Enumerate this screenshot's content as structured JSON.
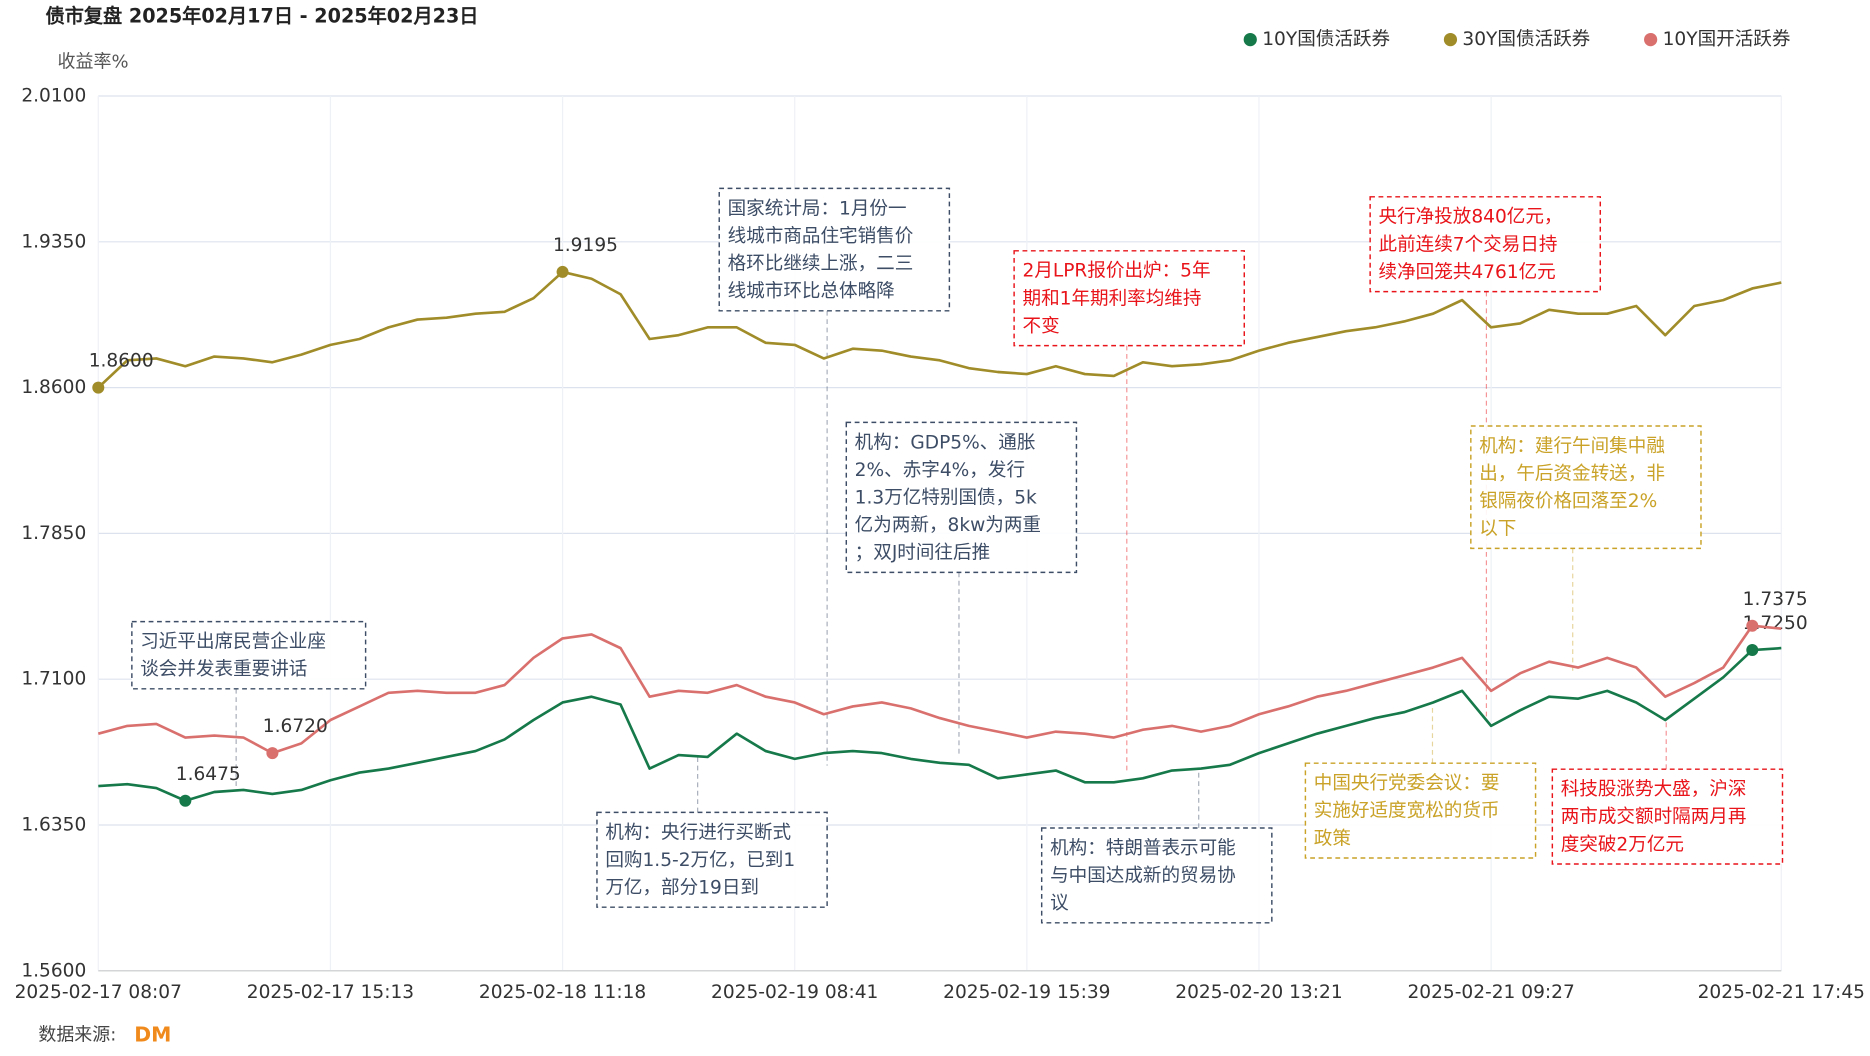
{
  "chart_data": {
    "type": "line",
    "title": "债市复盘 2025年02月17日 - 2025年02月23日",
    "y_label": "收益率%",
    "source_label": "数据来源:",
    "source_logo": "DM",
    "grid": true,
    "legend": "top-right",
    "ylim": [
      1.56,
      2.01
    ],
    "yticks": [
      {
        "value": 1.56,
        "label": "1.5600"
      },
      {
        "value": 1.635,
        "label": "1.6350"
      },
      {
        "value": 1.71,
        "label": "1.7100"
      },
      {
        "value": 1.785,
        "label": "1.7850"
      },
      {
        "value": 1.86,
        "label": "1.8600"
      },
      {
        "value": 1.935,
        "label": "1.9350"
      },
      {
        "value": 2.01,
        "label": "2.0100"
      }
    ],
    "categories": [
      "2025-02-17 08:07",
      null,
      null,
      null,
      null,
      null,
      null,
      null,
      "2025-02-17 15:13",
      null,
      null,
      null,
      null,
      null,
      null,
      null,
      "2025-02-18 11:18",
      null,
      null,
      null,
      null,
      null,
      null,
      null,
      "2025-02-19 08:41",
      null,
      null,
      null,
      null,
      null,
      null,
      null,
      "2025-02-19 15:39",
      null,
      null,
      null,
      null,
      null,
      null,
      null,
      "2025-02-20 13:21",
      null,
      null,
      null,
      null,
      null,
      null,
      null,
      "2025-02-21 09:27",
      null,
      null,
      null,
      null,
      null,
      null,
      null,
      null,
      null,
      "2025-02-21 17:45"
    ],
    "series": [
      {
        "name": "10Y国债活跃券",
        "color": "#16794a",
        "values": [
          1.655,
          1.656,
          1.654,
          1.6475,
          1.652,
          1.653,
          1.651,
          1.653,
          1.658,
          1.662,
          1.664,
          1.667,
          1.67,
          1.673,
          1.679,
          1.689,
          1.698,
          1.701,
          1.697,
          1.664,
          1.671,
          1.67,
          1.682,
          1.673,
          1.669,
          1.672,
          1.673,
          1.672,
          1.669,
          1.667,
          1.666,
          1.659,
          1.661,
          1.663,
          1.657,
          1.657,
          1.659,
          1.663,
          1.664,
          1.666,
          1.672,
          1.677,
          1.682,
          1.686,
          1.69,
          1.693,
          1.698,
          1.704,
          1.686,
          1.694,
          1.701,
          1.7,
          1.704,
          1.698,
          1.689,
          1.7,
          1.711,
          1.725,
          1.726
        ],
        "value_labels": [
          null,
          null,
          null,
          "1.6475",
          null,
          null,
          null,
          null,
          null,
          null,
          null,
          null,
          null,
          null,
          null,
          null,
          null,
          null,
          null,
          null,
          null,
          null,
          null,
          null,
          null,
          null,
          null,
          null,
          null,
          null,
          null,
          null,
          null,
          null,
          null,
          null,
          null,
          null,
          null,
          null,
          null,
          null,
          null,
          null,
          null,
          null,
          null,
          null,
          null,
          null,
          null,
          null,
          null,
          null,
          null,
          null,
          null,
          "1.7250",
          null
        ]
      },
      {
        "name": "30Y国债活跃券",
        "color": "#a08c28",
        "values": [
          1.86,
          1.874,
          1.875,
          1.871,
          1.876,
          1.875,
          1.873,
          1.877,
          1.882,
          1.885,
          1.891,
          1.895,
          1.896,
          1.898,
          1.899,
          1.906,
          1.9195,
          1.916,
          1.908,
          1.885,
          1.887,
          1.891,
          1.891,
          1.883,
          1.882,
          1.875,
          1.88,
          1.879,
          1.876,
          1.874,
          1.87,
          1.868,
          1.867,
          1.871,
          1.867,
          1.866,
          1.873,
          1.871,
          1.872,
          1.874,
          1.879,
          1.883,
          1.886,
          1.889,
          1.891,
          1.894,
          1.898,
          1.905,
          1.891,
          1.893,
          1.9,
          1.898,
          1.898,
          1.902,
          1.887,
          1.902,
          1.905,
          1.911,
          1.914
        ],
        "value_labels": [
          "1.8600",
          null,
          null,
          null,
          null,
          null,
          null,
          null,
          null,
          null,
          null,
          null,
          null,
          null,
          null,
          null,
          "1.9195",
          null,
          null,
          null,
          null,
          null,
          null,
          null,
          null,
          null,
          null,
          null,
          null,
          null,
          null,
          null,
          null,
          null,
          null,
          null,
          null,
          null,
          null,
          null,
          null,
          null,
          null,
          null,
          null,
          null,
          null,
          null,
          null,
          null,
          null,
          null,
          null,
          null,
          null,
          null,
          null,
          null,
          null
        ]
      },
      {
        "name": "10Y国开活跃券",
        "color": "#d9706e",
        "values": [
          1.682,
          1.686,
          1.687,
          1.68,
          1.681,
          1.68,
          1.672,
          1.677,
          1.689,
          1.696,
          1.703,
          1.704,
          1.703,
          1.703,
          1.707,
          1.721,
          1.731,
          1.733,
          1.726,
          1.701,
          1.704,
          1.703,
          1.707,
          1.701,
          1.698,
          1.692,
          1.696,
          1.698,
          1.695,
          1.69,
          1.686,
          1.683,
          1.68,
          1.683,
          1.682,
          1.68,
          1.684,
          1.686,
          1.683,
          1.686,
          1.692,
          1.696,
          1.701,
          1.704,
          1.708,
          1.712,
          1.716,
          1.721,
          1.704,
          1.713,
          1.719,
          1.716,
          1.721,
          1.716,
          1.701,
          1.708,
          1.716,
          1.7375,
          1.736
        ],
        "value_labels": [
          null,
          null,
          null,
          null,
          null,
          null,
          "1.6720",
          null,
          null,
          null,
          null,
          null,
          null,
          null,
          null,
          null,
          null,
          null,
          null,
          null,
          null,
          null,
          null,
          null,
          null,
          null,
          null,
          null,
          null,
          null,
          null,
          null,
          null,
          null,
          null,
          null,
          null,
          null,
          null,
          null,
          null,
          null,
          null,
          null,
          null,
          null,
          null,
          null,
          null,
          null,
          null,
          null,
          null,
          null,
          null,
          null,
          null,
          "1.7375",
          null
        ]
      }
    ],
    "annotations": [
      {
        "color": "#3d4d66",
        "lines": [
          "习近平出席民营企业座",
          "谈会并发表重要讲话"
        ]
      },
      {
        "color": "#3d4d66",
        "lines": [
          "国家统计局：1月份一",
          "线城市商品住宅销售价",
          "格环比继续上涨，二三",
          "线城市环比总体略降"
        ]
      },
      {
        "color": "#3d4d66",
        "lines": [
          "机构：GDP5%、通胀",
          "2%、赤字4%，发行",
          "1.3万亿特别国债，5k",
          "亿为两新，8kw为两重",
          "；双J时间往后推"
        ]
      },
      {
        "color": "#e8141a",
        "lines": [
          "2月LPR报价出炉：5年",
          "期和1年期利率均维持",
          "不变"
        ]
      },
      {
        "color": "#e8141a",
        "lines": [
          "央行净投放840亿元，",
          "此前连续7个交易日持",
          "续净回笼共4761亿元"
        ]
      },
      {
        "color": "#c9a227",
        "lines": [
          "机构：建行午间集中融",
          "出，午后资金转送，非",
          "银隔夜价格回落至2%",
          "以下"
        ]
      },
      {
        "color": "#3d4d66",
        "lines": [
          "机构：央行进行买断式",
          "回购1.5-2万亿，已到1",
          "万亿，部分19日到"
        ]
      },
      {
        "color": "#3d4d66",
        "lines": [
          "机构：特朗普表示可能",
          "与中国达成新的贸易协",
          "议"
        ]
      },
      {
        "color": "#c9a227",
        "lines": [
          "中国央行党委会议：要",
          "实施好适度宽松的货币",
          "政策"
        ]
      },
      {
        "color": "#e8141a",
        "lines": [
          "科技股涨势大盛，沪深",
          "两市成交额时隔两月再",
          "度突破2万亿元"
        ]
      }
    ]
  }
}
